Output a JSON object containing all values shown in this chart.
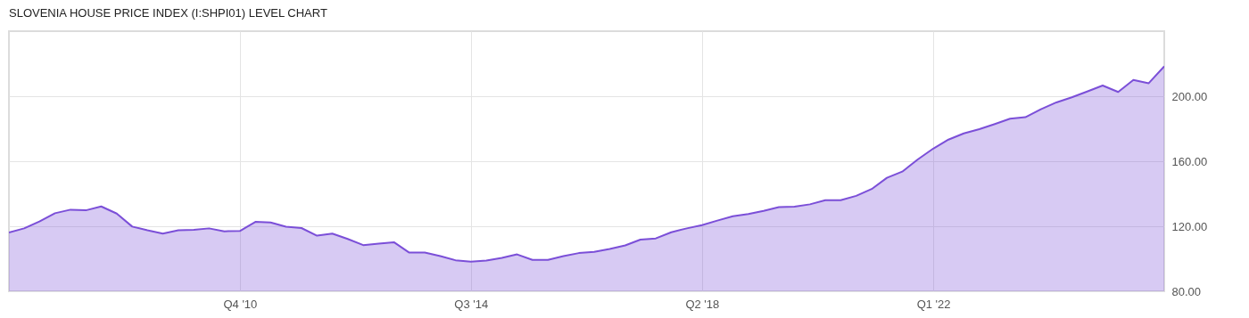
{
  "chart_data": {
    "type": "area",
    "title": "SLOVENIA HOUSE PRICE INDEX (I:SHPI01) LEVEL CHART",
    "x": [
      "2007-01",
      "2007-04",
      "2007-07",
      "2007-10",
      "2008-01",
      "2008-04",
      "2008-07",
      "2008-10",
      "2009-01",
      "2009-04",
      "2009-07",
      "2009-10",
      "2010-01",
      "2010-04",
      "2010-07",
      "2010-10",
      "2011-01",
      "2011-04",
      "2011-07",
      "2011-10",
      "2012-01",
      "2012-04",
      "2012-07",
      "2012-10",
      "2013-01",
      "2013-04",
      "2013-07",
      "2013-10",
      "2014-01",
      "2014-04",
      "2014-07",
      "2014-10",
      "2015-01",
      "2015-04",
      "2015-07",
      "2015-10",
      "2016-01",
      "2016-04",
      "2016-07",
      "2016-10",
      "2017-01",
      "2017-04",
      "2017-07",
      "2017-10",
      "2018-01",
      "2018-04",
      "2018-07",
      "2018-10",
      "2019-01",
      "2019-04",
      "2019-07",
      "2019-10",
      "2020-01",
      "2020-04",
      "2020-07",
      "2020-10",
      "2021-01",
      "2021-04",
      "2021-07",
      "2021-10",
      "2022-01",
      "2022-04",
      "2022-07",
      "2022-10",
      "2023-01",
      "2023-04",
      "2023-07",
      "2023-10",
      "2024-01",
      "2024-04",
      "2024-07",
      "2024-10",
      "2025-01",
      "2025-04",
      "2025-07",
      "2025-10"
    ],
    "series": [
      {
        "color": "#7b4fd8",
        "values": [
          116.2,
          118.7,
          122.9,
          128.0,
          130.2,
          129.8,
          132.2,
          127.8,
          119.8,
          117.5,
          115.5,
          117.5,
          117.8,
          118.7,
          116.9,
          117.1,
          122.7,
          122.3,
          119.7,
          118.9,
          114.2,
          115.5,
          112.2,
          108.4,
          109.3,
          110.2,
          103.8,
          103.8,
          101.6,
          99.1,
          98.2,
          98.9,
          100.5,
          102.7,
          99.3,
          99.3,
          101.6,
          103.5,
          104.2,
          106.0,
          108.2,
          111.8,
          112.5,
          116.3,
          118.7,
          120.7,
          123.5,
          126.2,
          127.5,
          129.5,
          131.8,
          132.0,
          133.5,
          136.0,
          136.0,
          138.7,
          142.9,
          149.8,
          153.6,
          161.1,
          167.8,
          173.3,
          177.1,
          179.7,
          182.9,
          186.2,
          187.1,
          192.0,
          196.2,
          199.3,
          202.9,
          206.6,
          202.6,
          210.0,
          208.0,
          218.4
        ]
      }
    ],
    "xlim": [
      "2007-01",
      "2025-10"
    ],
    "xticks": [
      {
        "value": "2010-10",
        "label": "Q4 '10"
      },
      {
        "value": "2014-07",
        "label": "Q3 '14"
      },
      {
        "value": "2018-04",
        "label": "Q2 '18"
      },
      {
        "value": "2022-01",
        "label": "Q1 '22"
      }
    ],
    "ylim": [
      80,
      240
    ],
    "yticks": [
      {
        "value": 80,
        "label": "80.00"
      },
      {
        "value": 120,
        "label": "120.00"
      },
      {
        "value": 160,
        "label": "160.00"
      },
      {
        "value": 200,
        "label": "200.00"
      }
    ],
    "grid": true
  }
}
